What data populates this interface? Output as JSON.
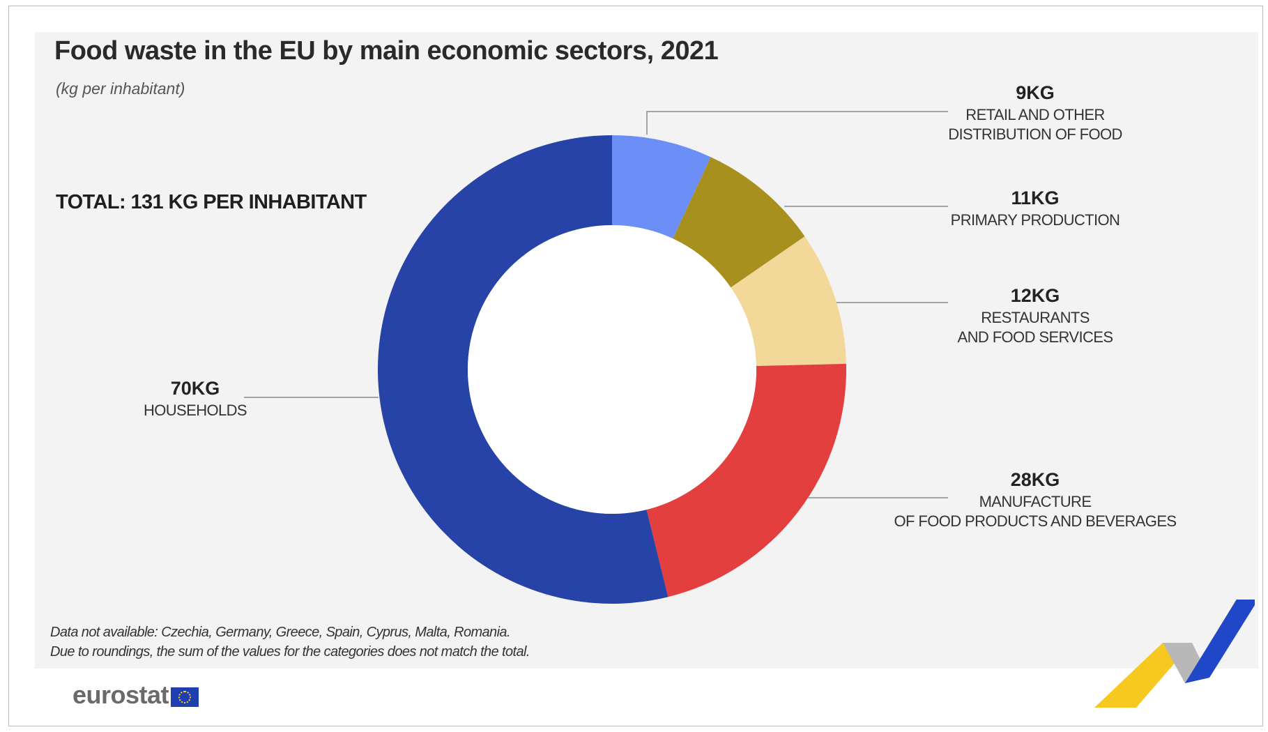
{
  "chart_data": {
    "type": "pie",
    "donut": true,
    "title": "Food waste in the EU by main economic sectors, 2021",
    "subtitle": "(kg per inhabitant)",
    "total_label": "TOTAL: 131 KG PER INHABITANT",
    "unit": "kg per inhabitant",
    "slices": [
      {
        "value_label": "9KG",
        "label_lines": [
          "RETAIL AND OTHER",
          "DISTRIBUTION OF FOOD"
        ],
        "value": 9,
        "color": "#6b8ff7"
      },
      {
        "value_label": "11KG",
        "label_lines": [
          "PRIMARY PRODUCTION"
        ],
        "value": 11,
        "color": "#a8901f"
      },
      {
        "value_label": "12KG",
        "label_lines": [
          "RESTAURANTS",
          "AND FOOD SERVICES"
        ],
        "value": 12,
        "color": "#f2d899"
      },
      {
        "value_label": "28KG",
        "label_lines": [
          "MANUFACTURE",
          "OF FOOD PRODUCTS AND BEVERAGES"
        ],
        "value": 28,
        "color": "#e33f3f"
      },
      {
        "value_label": "70KG",
        "label_lines": [
          "HOUSEHOLDS"
        ],
        "value": 70,
        "color": "#2743a8"
      }
    ],
    "notes": [
      "Data not available:  Czechia, Germany, Greece, Spain, Cyprus, Malta, Romania.",
      "Due to roundings, the sum of the values for the categories does not match the total."
    ]
  },
  "branding": {
    "logo_text": "eurostat"
  },
  "colors": {
    "panel_background": "#f3f3f3",
    "deco_yellow": "#f6c820",
    "deco_grey": "#b8b8b8",
    "deco_blue": "#1f47c8"
  }
}
